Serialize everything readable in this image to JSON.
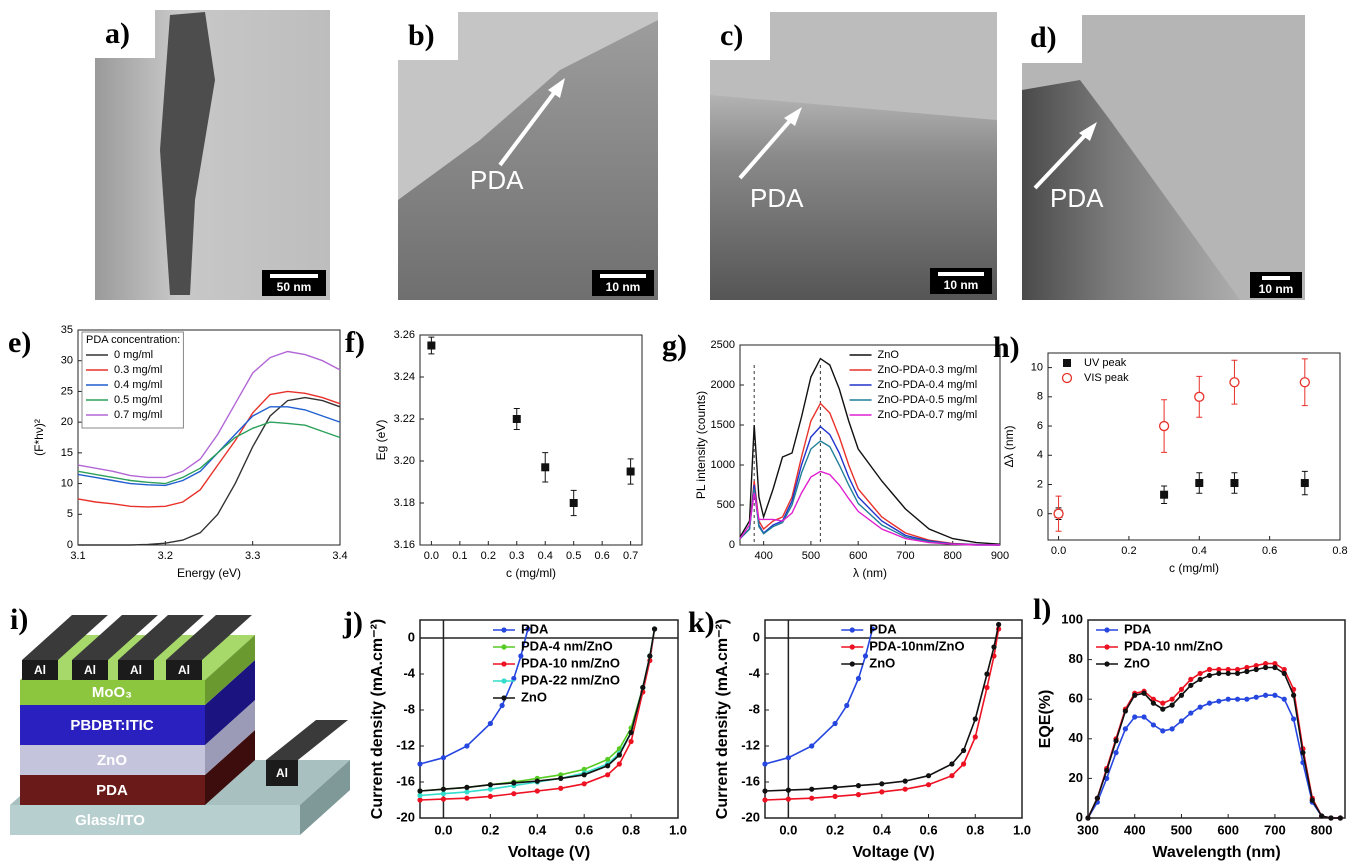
{
  "images": [
    {
      "label": "a)",
      "scale": "50 nm"
    },
    {
      "label": "b)",
      "annotation": "PDA",
      "scale": "10 nm"
    },
    {
      "label": "c)",
      "annotation": "PDA",
      "scale": "10 nm"
    },
    {
      "label": "d)",
      "annotation": "PDA",
      "scale": "10 nm"
    }
  ],
  "diagram": {
    "label": "i)",
    "layers": [
      "MoO₃",
      "PBDBT:ITIC",
      "ZnO",
      "PDA",
      "Glass/ITO"
    ],
    "electrodes": [
      "Al",
      "Al",
      "Al",
      "Al",
      "Al"
    ]
  },
  "chart_data": [
    {
      "type": "line",
      "label": "e)",
      "x_label": "Energy (eV)",
      "y_label": "(F*hν)²",
      "xlim": [
        3.1,
        3.4
      ],
      "ylim": [
        0,
        35
      ],
      "xticks": [
        3.1,
        3.2,
        3.3,
        3.4
      ],
      "yticks": [
        0,
        5,
        10,
        15,
        20,
        25,
        30,
        35
      ],
      "legend": "upper left",
      "legend_title": "PDA concentration:",
      "x": [
        3.1,
        3.12,
        3.14,
        3.16,
        3.18,
        3.2,
        3.22,
        3.24,
        3.26,
        3.28,
        3.3,
        3.32,
        3.34,
        3.36,
        3.38,
        3.4
      ],
      "series": [
        {
          "name": "0 mg/ml",
          "color": "#333333",
          "values": [
            0,
            0,
            0,
            0,
            0.1,
            0.3,
            0.8,
            2,
            5,
            10,
            16,
            21,
            23.5,
            24,
            23.5,
            22.5
          ]
        },
        {
          "name": "0.3 mg/ml",
          "color": "#e8312a",
          "values": [
            7.5,
            7,
            6.7,
            6.3,
            6.2,
            6.3,
            7,
            9,
            13,
            17,
            21.5,
            24.5,
            25,
            24.7,
            24,
            23
          ]
        },
        {
          "name": "0.4 mg/ml",
          "color": "#1f5fd0",
          "values": [
            11.5,
            11,
            10.5,
            10,
            9.8,
            9.7,
            10.5,
            12,
            15,
            18,
            21,
            22.5,
            22.5,
            22,
            21,
            20
          ]
        },
        {
          "name": "0.5 mg/ml",
          "color": "#2ca05a",
          "values": [
            12,
            11.5,
            11,
            10.5,
            10.2,
            10,
            11,
            12.5,
            15,
            17.5,
            19,
            20,
            19.8,
            19.5,
            18.5,
            17.5
          ]
        },
        {
          "name": "0.7 mg/ml",
          "color": "#b267d6",
          "values": [
            13,
            12.5,
            12,
            11.3,
            11,
            11,
            12,
            14,
            18,
            23,
            28,
            30.5,
            31.5,
            31,
            30,
            28.5
          ]
        }
      ]
    },
    {
      "type": "scatter",
      "label": "f)",
      "x_label": "c (mg/ml)",
      "y_label": "Eg (eV)",
      "xlim": [
        -0.04,
        0.74
      ],
      "ylim": [
        3.16,
        3.26
      ],
      "xticks": [
        {
          "value": 0,
          "label": "0.0"
        },
        0.1,
        0.2,
        0.3,
        0.4,
        0.5,
        0.6,
        0.7
      ],
      "yticks": [
        3.16,
        3.18,
        {
          "value": 3.2,
          "label": "3.20"
        },
        3.22,
        3.24,
        3.26
      ],
      "x": [
        0,
        0.3,
        0.4,
        0.5,
        0.7
      ],
      "series": [
        {
          "color": "#111111",
          "marker": "square",
          "values": [
            3.255,
            3.22,
            3.197,
            3.18,
            3.195
          ],
          "err": [
            0.004,
            0.005,
            0.007,
            0.006,
            0.006
          ]
        }
      ]
    },
    {
      "type": "line",
      "label": "g)",
      "x_label": "λ (nm)",
      "y_label": "PL intensity (counts)",
      "xlim": [
        350,
        900
      ],
      "ylim": [
        0,
        2500
      ],
      "xticks": [
        400,
        500,
        600,
        700,
        800,
        900
      ],
      "yticks": [
        0,
        500,
        1000,
        1500,
        2000,
        2500
      ],
      "legend": "upper right",
      "vlines": [
        380,
        520
      ],
      "x": [
        350,
        370,
        380,
        390,
        400,
        420,
        440,
        460,
        480,
        500,
        520,
        540,
        560,
        580,
        600,
        650,
        700,
        750,
        800,
        850,
        900
      ],
      "series": [
        {
          "name": "ZnO",
          "color": "#111111",
          "values": [
            100,
            300,
            1500,
            600,
            350,
            700,
            1100,
            1150,
            1600,
            2100,
            2330,
            2250,
            1950,
            1550,
            1200,
            800,
            450,
            200,
            80,
            30,
            10
          ]
        },
        {
          "name": "ZnO-PDA-0.3 mg/ml",
          "color": "#e8312a",
          "values": [
            80,
            200,
            800,
            300,
            200,
            300,
            350,
            600,
            1100,
            1550,
            1770,
            1650,
            1350,
            1000,
            700,
            350,
            150,
            60,
            20,
            5,
            0
          ]
        },
        {
          "name": "ZnO-PDA-0.4 mg/ml",
          "color": "#2233cc",
          "values": [
            80,
            200,
            750,
            250,
            150,
            250,
            300,
            550,
            1000,
            1350,
            1480,
            1380,
            1150,
            850,
            600,
            300,
            120,
            50,
            15,
            5,
            0
          ]
        },
        {
          "name": "ZnO-PDA-0.5 mg/ml",
          "color": "#1f7f99",
          "values": [
            80,
            200,
            700,
            230,
            140,
            230,
            280,
            500,
            900,
            1200,
            1300,
            1230,
            1000,
            750,
            520,
            250,
            100,
            40,
            10,
            0,
            0
          ]
        },
        {
          "name": "ZnO-PDA-0.7 mg/ml",
          "color": "#e020d0",
          "values": [
            80,
            250,
            650,
            320,
            320,
            320,
            300,
            400,
            650,
            850,
            920,
            880,
            750,
            580,
            420,
            200,
            80,
            30,
            10,
            0,
            0
          ]
        }
      ]
    },
    {
      "type": "scatter",
      "label": "h)",
      "x_label": "c (mg/ml)",
      "y_label": "Δλ (nm)",
      "xlim": [
        -0.03,
        0.8
      ],
      "ylim": [
        -1.8,
        11
      ],
      "xticks": [
        {
          "value": 0,
          "label": "0.0"
        },
        0.2,
        0.4,
        0.6,
        0.8
      ],
      "yticks": [
        0,
        2,
        4,
        6,
        8,
        10
      ],
      "legend": "upper left",
      "x": [
        0,
        0.3,
        0.4,
        0.5,
        0.7
      ],
      "series": [
        {
          "name": "UV peak",
          "color": "#111111",
          "marker": "square",
          "values": [
            0,
            1.3,
            2.1,
            2.1,
            2.1
          ],
          "err": [
            0.4,
            0.6,
            0.7,
            0.7,
            0.8
          ]
        },
        {
          "name": "VIS peak",
          "color": "#e8312a",
          "marker": "open-circle",
          "values": [
            0,
            6,
            8,
            9,
            9
          ],
          "err": [
            1.2,
            1.8,
            1.4,
            1.5,
            1.6
          ]
        }
      ]
    },
    {
      "type": "line",
      "label": "j)",
      "x_label": "Voltage (V)",
      "y_label": "Current density (mA.cm⁻²)",
      "xlim": [
        -0.1,
        1.0
      ],
      "ylim": [
        -20,
        2
      ],
      "xticks": [
        {
          "value": 0,
          "label": "0.0"
        },
        0.2,
        0.4,
        0.6,
        0.8,
        {
          "value": 1,
          "label": "1.0"
        }
      ],
      "yticks": [
        -20,
        -16,
        -12,
        -8,
        -4,
        0
      ],
      "legend": "upper center",
      "zero_lines": true,
      "x": [
        -0.1,
        0,
        0.1,
        0.2,
        0.3,
        0.4,
        0.5,
        0.6,
        0.7,
        0.75,
        0.8,
        0.85,
        0.88,
        0.9
      ],
      "series": [
        {
          "name": "PDA",
          "color": "#2646e0",
          "marker": "circle",
          "x": [
            -0.1,
            0,
            0.1,
            0.2,
            0.25,
            0.3,
            0.33,
            0.36
          ],
          "values": [
            -14,
            -13.3,
            -12,
            -9.5,
            -7.5,
            -4.5,
            -2,
            1
          ]
        },
        {
          "name": "PDA-4 nm/ZnO",
          "color": "#55cc22",
          "marker": "circle",
          "values": [
            -17,
            -16.8,
            -16.6,
            -16.3,
            -16,
            -15.6,
            -15.2,
            -14.6,
            -13.5,
            -12.3,
            -10,
            -5.5,
            -2,
            1
          ]
        },
        {
          "name": "PDA-10 nm/ZnO",
          "color": "#ee1122",
          "marker": "circle",
          "values": [
            -18,
            -17.9,
            -17.8,
            -17.6,
            -17.3,
            -17,
            -16.7,
            -16.2,
            -15.2,
            -14,
            -11.5,
            -6,
            -2.5,
            1
          ]
        },
        {
          "name": "PDA-22 nm/ZnO",
          "color": "#33ddcc",
          "marker": "circle",
          "values": [
            -17.5,
            -17.3,
            -17.1,
            -16.8,
            -16.4,
            -16,
            -15.6,
            -15,
            -14,
            -12.8,
            -10.5,
            -5.5,
            -2,
            1
          ]
        },
        {
          "name": "ZnO",
          "color": "#111111",
          "marker": "circle",
          "values": [
            -17,
            -16.8,
            -16.6,
            -16.3,
            -16.1,
            -15.9,
            -15.6,
            -15.2,
            -14.2,
            -13,
            -10.5,
            -5.5,
            -2,
            1
          ]
        }
      ]
    },
    {
      "type": "line",
      "label": "k)",
      "x_label": "Voltage (V)",
      "y_label": "Current density (mA.cm⁻²)",
      "xlim": [
        -0.1,
        1.0
      ],
      "ylim": [
        -20,
        2
      ],
      "xticks": [
        {
          "value": 0,
          "label": "0.0"
        },
        0.2,
        0.4,
        0.6,
        0.8,
        {
          "value": 1,
          "label": "1.0"
        }
      ],
      "yticks": [
        -20,
        -16,
        -12,
        -8,
        -4,
        0
      ],
      "legend": "upper center",
      "zero_lines": true,
      "x": [
        -0.1,
        0,
        0.1,
        0.2,
        0.3,
        0.4,
        0.5,
        0.6,
        0.7,
        0.75,
        0.8,
        0.85,
        0.88,
        0.9
      ],
      "series": [
        {
          "name": "PDA",
          "color": "#2646e0",
          "marker": "circle",
          "x": [
            -0.1,
            0,
            0.1,
            0.2,
            0.25,
            0.3,
            0.33,
            0.36
          ],
          "values": [
            -14,
            -13.3,
            -12,
            -9.5,
            -7.5,
            -4.5,
            -2,
            1
          ]
        },
        {
          "name": "PDA-10nm/ZnO",
          "color": "#ee1122",
          "marker": "circle",
          "values": [
            -18,
            -17.9,
            -17.8,
            -17.6,
            -17.4,
            -17.1,
            -16.8,
            -16.3,
            -15.3,
            -14,
            -11,
            -5.5,
            -2,
            1
          ]
        },
        {
          "name": "ZnO",
          "color": "#111111",
          "marker": "circle",
          "values": [
            -17,
            -16.9,
            -16.8,
            -16.6,
            -16.4,
            -16.2,
            -15.9,
            -15.3,
            -14,
            -12.5,
            -9,
            -4,
            -1,
            1.5
          ]
        }
      ]
    },
    {
      "type": "line",
      "label": "l)",
      "x_label": "Wavelength (nm)",
      "y_label": "EQE(%)",
      "xlim": [
        300,
        850
      ],
      "ylim": [
        0,
        100
      ],
      "xticks": [
        300,
        400,
        500,
        600,
        700,
        800
      ],
      "yticks": [
        0,
        20,
        40,
        60,
        80,
        100
      ],
      "legend": "upper left",
      "x": [
        300,
        320,
        340,
        360,
        380,
        400,
        420,
        440,
        460,
        480,
        500,
        520,
        540,
        560,
        580,
        600,
        620,
        640,
        660,
        680,
        700,
        720,
        740,
        760,
        780,
        800,
        820,
        840
      ],
      "series": [
        {
          "name": "PDA",
          "color": "#2646e0",
          "marker": "circle",
          "values": [
            0,
            8,
            20,
            33,
            45,
            51,
            51,
            47,
            44,
            45,
            49,
            53,
            56,
            58,
            59,
            60,
            60,
            60,
            61,
            62,
            62,
            60,
            50,
            28,
            8,
            1,
            0,
            0
          ]
        },
        {
          "name": "PDA-10 nm/ZnO",
          "color": "#ee1122",
          "marker": "circle",
          "values": [
            0,
            10,
            25,
            40,
            55,
            63,
            64,
            60,
            58,
            60,
            65,
            70,
            73,
            75,
            75,
            75,
            75,
            76,
            77,
            78,
            78,
            75,
            65,
            35,
            10,
            1,
            0,
            0
          ]
        },
        {
          "name": "ZnO",
          "color": "#111111",
          "marker": "circle",
          "values": [
            0,
            10,
            24,
            39,
            54,
            62,
            63,
            58,
            55,
            57,
            62,
            67,
            70,
            72,
            73,
            73,
            73,
            74,
            75,
            76,
            76,
            73,
            62,
            33,
            9,
            1,
            0,
            0
          ]
        }
      ]
    }
  ]
}
